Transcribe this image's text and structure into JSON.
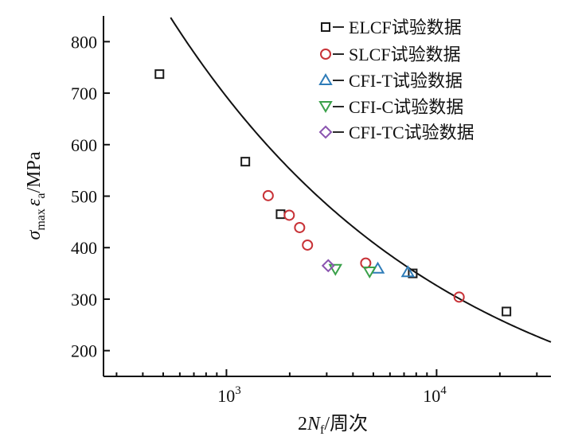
{
  "chart_data": {
    "type": "scatter",
    "xscale": "log",
    "xlim": [
      260,
      35000
    ],
    "ylim": [
      150,
      850
    ],
    "xticks": [
      {
        "value": 1000,
        "base": "10",
        "exp": "3"
      },
      {
        "value": 10000,
        "base": "10",
        "exp": "4"
      }
    ],
    "yticks": [
      {
        "value": 200,
        "label": "200"
      },
      {
        "value": 300,
        "label": "300"
      },
      {
        "value": 400,
        "label": "400"
      },
      {
        "value": 500,
        "label": "500"
      },
      {
        "value": 600,
        "label": "600"
      },
      {
        "value": 700,
        "label": "700"
      },
      {
        "value": 800,
        "label": "800"
      }
    ],
    "xlabel": {
      "pre": "2",
      "italic": "N",
      "sub": "f",
      "post": "/周次"
    },
    "ylabel": {
      "sigma": "σ",
      "sigma_sub": "max",
      "eps": "ε",
      "eps_sub": "a",
      "post": "/MPa"
    },
    "legend_position": "top-right",
    "series": [
      {
        "name": "ELCF试验数据",
        "marker": "square",
        "color": "#1a1a1a",
        "points": [
          [
            480,
            737
          ],
          [
            1230,
            567
          ],
          [
            1810,
            465
          ],
          [
            7700,
            350
          ],
          [
            21500,
            276
          ]
        ]
      },
      {
        "name": "SLCF试验数据",
        "marker": "circle",
        "color": "#c83237",
        "points": [
          [
            1580,
            501
          ],
          [
            1990,
            463
          ],
          [
            2230,
            439
          ],
          [
            2430,
            405
          ],
          [
            4600,
            370
          ],
          [
            12800,
            304
          ]
        ]
      },
      {
        "name": "CFI-T试验数据",
        "marker": "triangle-up",
        "color": "#2e7cb8",
        "points": [
          [
            5250,
            359
          ],
          [
            7300,
            352
          ]
        ]
      },
      {
        "name": "CFI-C试验数据",
        "marker": "triangle-down",
        "color": "#3aa14a",
        "points": [
          [
            3300,
            359
          ],
          [
            4800,
            354
          ]
        ]
      },
      {
        "name": "CFI-TC试验数据",
        "marker": "diamond",
        "color": "#8b55b0",
        "points": [
          [
            3050,
            365
          ]
        ]
      }
    ],
    "fit_curve": {
      "type": "power",
      "a": 6640,
      "b": -0.3271,
      "color": "#111111"
    }
  }
}
